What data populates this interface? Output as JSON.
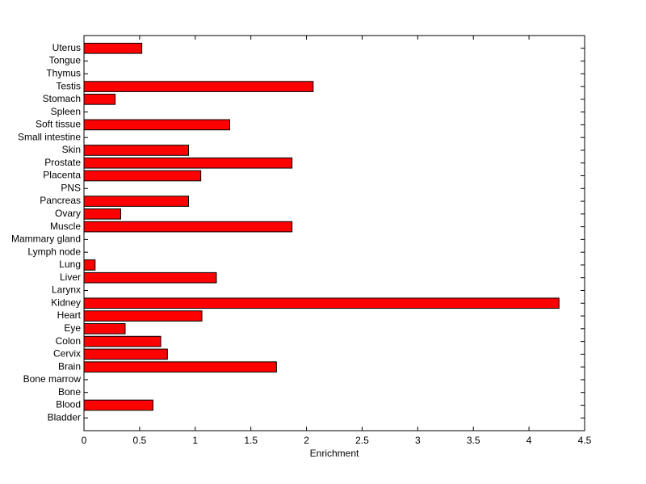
{
  "chart_data": {
    "type": "barh",
    "xlabel": "Enrichment",
    "categories": [
      "Bladder",
      "Blood",
      "Bone",
      "Bone marrow",
      "Brain",
      "Cervix",
      "Colon",
      "Eye",
      "Heart",
      "Kidney",
      "Larynx",
      "Liver",
      "Lung",
      "Lymph node",
      "Mammary gland",
      "Muscle",
      "Ovary",
      "Pancreas",
      "PNS",
      "Placenta",
      "Prostate",
      "Skin",
      "Small intestine",
      "Soft tissue",
      "Spleen",
      "Stomach",
      "Testis",
      "Thymus",
      "Tongue",
      "Uterus"
    ],
    "values": [
      0,
      0.62,
      0,
      0,
      1.73,
      0.75,
      0.69,
      0.37,
      1.06,
      4.27,
      0,
      1.19,
      0.1,
      0,
      0,
      1.87,
      0.33,
      0.94,
      0,
      1.05,
      1.87,
      0.94,
      0,
      1.31,
      0,
      0.28,
      2.06,
      0,
      0,
      0.52
    ],
    "color": "#ff0000",
    "xlim": [
      0,
      4.5
    ],
    "xticks": [
      0,
      0.5,
      1,
      1.5,
      2,
      2.5,
      3,
      3.5,
      4,
      4.5
    ]
  }
}
